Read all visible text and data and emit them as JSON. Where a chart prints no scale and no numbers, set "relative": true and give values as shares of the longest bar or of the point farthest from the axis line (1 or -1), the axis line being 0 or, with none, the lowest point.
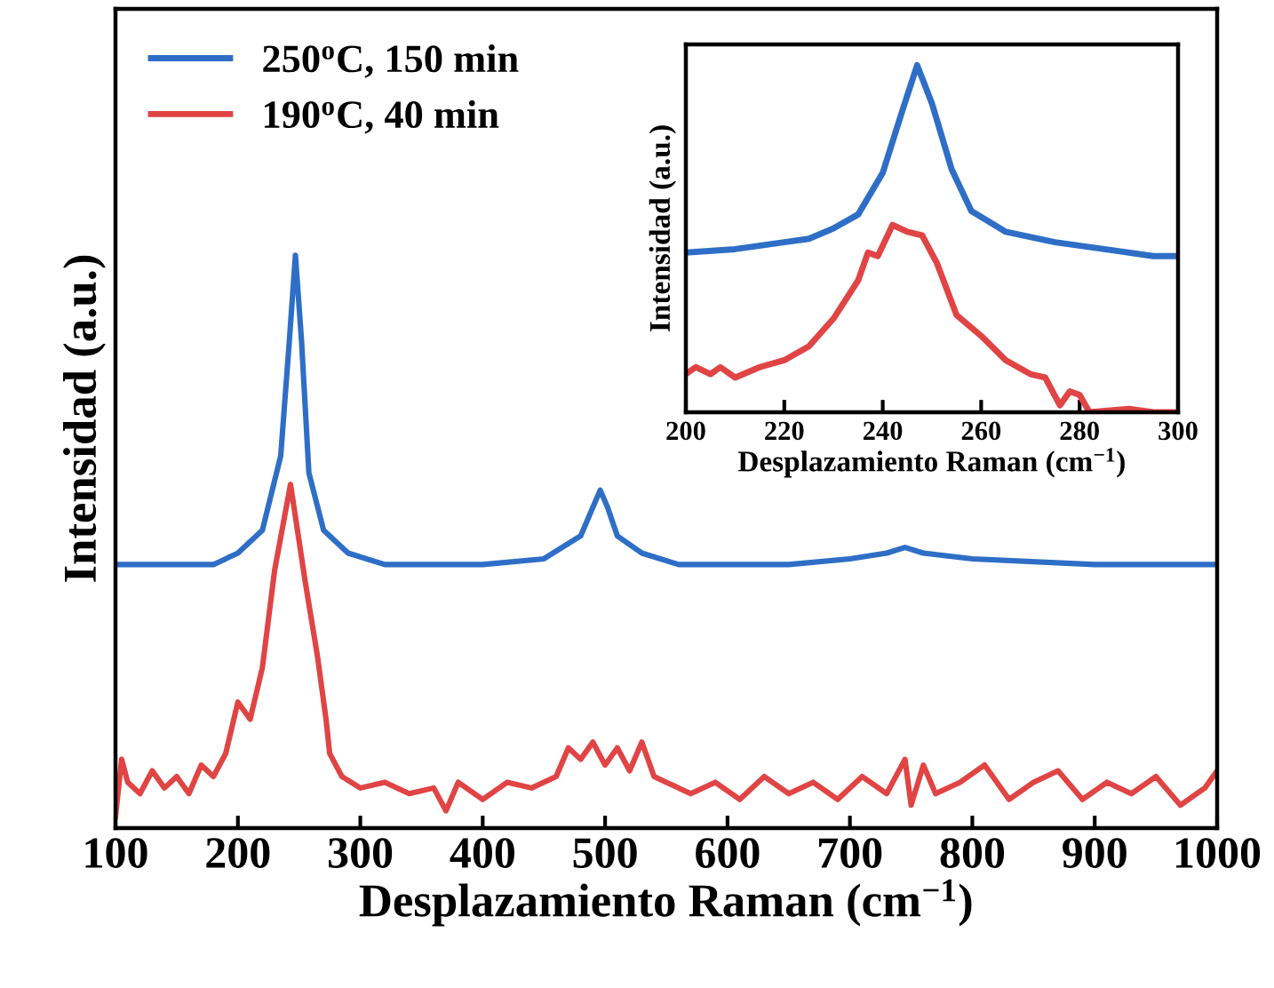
{
  "chart_data": [
    {
      "type": "line",
      "relative": true,
      "xlabel": "Desplazamiento Raman (cm$^{−1}$)",
      "ylabel": "Intensidad (a.u.)",
      "xlim": [
        100,
        1000
      ],
      "xticks": [
        100,
        200,
        300,
        400,
        500,
        600,
        700,
        800,
        900,
        1000
      ],
      "legend": "top left",
      "grid": false,
      "series": [
        {
          "name": "250$^{o}$C, 150 min",
          "color": "#2e6ec6",
          "x": [
            100,
            150,
            180,
            200,
            220,
            235,
            242,
            247,
            252,
            258,
            270,
            290,
            320,
            400,
            450,
            480,
            490,
            496,
            502,
            510,
            530,
            560,
            650,
            700,
            730,
            745,
            760,
            800,
            900,
            1000
          ],
          "values": [
            0.46,
            0.46,
            0.46,
            0.48,
            0.52,
            0.65,
            0.85,
            1.0,
            0.85,
            0.62,
            0.52,
            0.48,
            0.46,
            0.46,
            0.47,
            0.51,
            0.56,
            0.59,
            0.56,
            0.51,
            0.48,
            0.46,
            0.46,
            0.47,
            0.48,
            0.49,
            0.48,
            0.47,
            0.46,
            0.46
          ]
        },
        {
          "name": "190$^{o}$C, 40 min",
          "color": "#e04444",
          "x": [
            100,
            105,
            110,
            120,
            130,
            140,
            150,
            160,
            170,
            180,
            190,
            200,
            210,
            220,
            230,
            243,
            255,
            265,
            272,
            275,
            285,
            300,
            320,
            340,
            360,
            370,
            380,
            400,
            420,
            440,
            460,
            470,
            480,
            490,
            500,
            510,
            520,
            530,
            540,
            550,
            570,
            590,
            610,
            630,
            650,
            670,
            690,
            710,
            730,
            745,
            750,
            760,
            770,
            790,
            810,
            830,
            850,
            870,
            890,
            910,
            930,
            950,
            970,
            990,
            1000
          ],
          "values": [
            0.02,
            0.12,
            0.08,
            0.06,
            0.1,
            0.07,
            0.09,
            0.06,
            0.11,
            0.09,
            0.13,
            0.22,
            0.19,
            0.28,
            0.45,
            0.6,
            0.43,
            0.3,
            0.19,
            0.13,
            0.09,
            0.07,
            0.08,
            0.06,
            0.07,
            0.03,
            0.08,
            0.05,
            0.08,
            0.07,
            0.09,
            0.14,
            0.12,
            0.15,
            0.11,
            0.14,
            0.1,
            0.15,
            0.09,
            0.08,
            0.06,
            0.08,
            0.05,
            0.09,
            0.06,
            0.08,
            0.05,
            0.09,
            0.06,
            0.12,
            0.04,
            0.11,
            0.06,
            0.08,
            0.11,
            0.05,
            0.08,
            0.1,
            0.05,
            0.08,
            0.06,
            0.09,
            0.04,
            0.07,
            0.1
          ]
        }
      ]
    },
    {
      "type": "line",
      "relative": true,
      "xlabel": "Desplazamiento Raman (cm$^{−1}$)",
      "ylabel": "Intensidad (a.u.)",
      "xlim": [
        200,
        300
      ],
      "xticks": [
        200,
        220,
        240,
        260,
        280,
        300
      ],
      "grid": false,
      "series": [
        {
          "color": "#2e6ec6",
          "x": [
            200,
            210,
            220,
            225,
            230,
            235,
            240,
            244,
            247,
            250,
            254,
            258,
            265,
            275,
            285,
            295,
            300
          ],
          "values": [
            0.46,
            0.47,
            0.49,
            0.5,
            0.53,
            0.57,
            0.69,
            0.87,
            1.0,
            0.89,
            0.7,
            0.58,
            0.52,
            0.49,
            0.47,
            0.45,
            0.45
          ]
        },
        {
          "color": "#e04444",
          "x": [
            200,
            202,
            205,
            207,
            210,
            215,
            220,
            225,
            230,
            235,
            237,
            239,
            242,
            245,
            248,
            251,
            255,
            260,
            265,
            270,
            273,
            276,
            278,
            280,
            282,
            290,
            295,
            300
          ],
          "values": [
            0.11,
            0.13,
            0.11,
            0.13,
            0.1,
            0.13,
            0.15,
            0.19,
            0.27,
            0.38,
            0.46,
            0.45,
            0.54,
            0.52,
            0.51,
            0.43,
            0.28,
            0.22,
            0.15,
            0.11,
            0.1,
            0.02,
            0.06,
            0.05,
            0.0,
            0.01,
            0.0,
            0.0
          ]
        }
      ]
    }
  ]
}
